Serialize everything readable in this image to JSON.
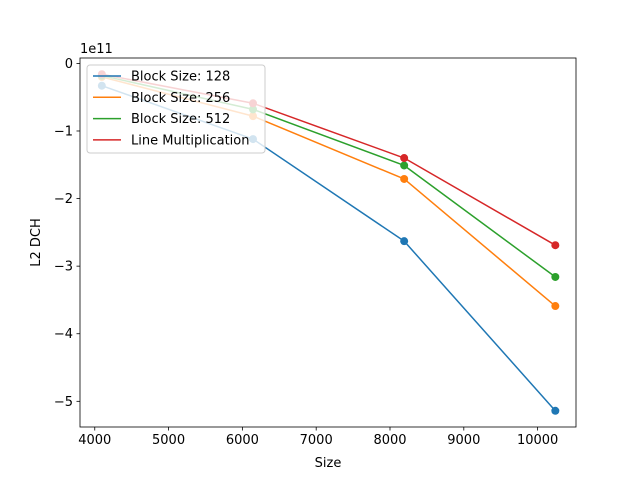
{
  "chart_data": {
    "type": "line",
    "title": "",
    "xlabel": "Size",
    "ylabel": "L2 DCH",
    "y_scale_label": "1e11",
    "xlim": [
      3800,
      10520
    ],
    "ylim": [
      -5.38,
      0.08
    ],
    "x_ticks": [
      4000,
      5000,
      6000,
      7000,
      8000,
      9000,
      10000
    ],
    "y_ticks": [
      0,
      -1,
      -2,
      -3,
      -4,
      -5
    ],
    "x_tick_labels": [
      "4000",
      "5000",
      "6000",
      "7000",
      "8000",
      "9000",
      "10000"
    ],
    "y_tick_labels": [
      "0",
      "−1",
      "−2",
      "−3",
      "−4",
      "−5"
    ],
    "x": [
      4096,
      6144,
      8192,
      10240
    ],
    "series": [
      {
        "name": "Block Size: 128",
        "color": "#1f77b4",
        "values": [
          -0.33,
          -1.12,
          -2.63,
          -5.14
        ]
      },
      {
        "name": "Block Size: 256",
        "color": "#ff7f0e",
        "values": [
          -0.2,
          -0.78,
          -1.71,
          -3.59
        ]
      },
      {
        "name": "Block Size: 512",
        "color": "#2ca02c",
        "values": [
          -0.18,
          -0.68,
          -1.51,
          -3.16
        ]
      },
      {
        "name": "Line Multiplication",
        "color": "#d62728",
        "values": [
          -0.16,
          -0.59,
          -1.4,
          -2.69
        ]
      }
    ],
    "grid": false,
    "legend_position": "upper-left"
  }
}
